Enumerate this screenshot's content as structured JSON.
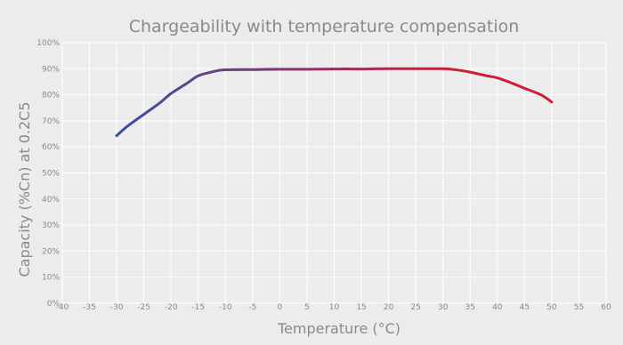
{
  "chart_data": {
    "type": "line",
    "title": "Chargeability with temperature compensation",
    "xlabel": "Temperature (°C)",
    "ylabel": "Capacity (%Cn) at 0.2C5",
    "xlim": [
      -40,
      60
    ],
    "ylim": [
      0,
      100
    ],
    "x_ticks": [
      "-40",
      "-35",
      "-30",
      "-25",
      "-20",
      "-15",
      "-10",
      "-5",
      "0",
      "5",
      "10",
      "15",
      "20",
      "25",
      "30",
      "35",
      "40",
      "45",
      "50",
      "55",
      "60"
    ],
    "y_ticks": [
      "0%",
      "10%",
      "20%",
      "30%",
      "40%",
      "50%",
      "60%",
      "70%",
      "80%",
      "90%",
      "100%"
    ],
    "grid": true,
    "legend": "none",
    "series": [
      {
        "x": [
          -30,
          -28,
          -25,
          -22,
          -20,
          -17,
          -15,
          -12,
          -10,
          -5,
          0,
          5,
          10,
          15,
          20,
          25,
          28,
          30,
          32,
          35,
          38,
          40,
          43,
          45,
          48,
          50
        ],
        "y": [
          64.3,
          68,
          72.5,
          77,
          80.5,
          84.5,
          87.3,
          89,
          89.6,
          89.7,
          89.8,
          89.8,
          89.9,
          89.9,
          90,
          90,
          90,
          90,
          89.7,
          88.7,
          87.3,
          86.5,
          84.2,
          82.5,
          80,
          77.2
        ]
      }
    ],
    "colors": {
      "start": "#3a4fa0",
      "end": "#cc1f35",
      "grid": "#ffffff",
      "background": "#ececec",
      "text": "#8a8a8a"
    }
  }
}
